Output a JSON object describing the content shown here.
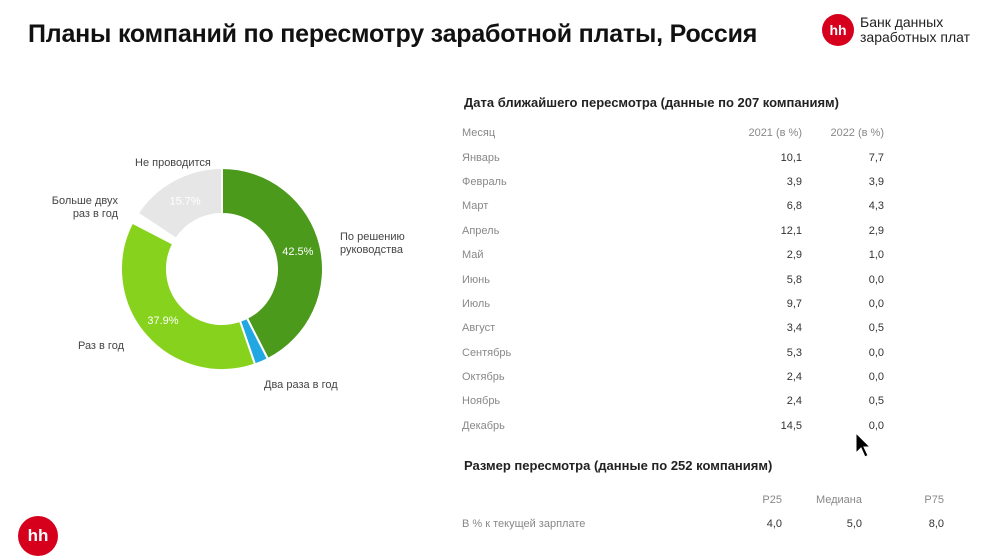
{
  "header": {
    "title": "Планы компаний по пересмотру заработной платы, Россия",
    "brand_logo": "hh",
    "brand_line1": "Банк данных",
    "brand_line2": "заработных плат"
  },
  "chart_data": {
    "type": "pie",
    "donut": true,
    "slices": [
      {
        "label": "По решению руководства",
        "value": 42.5,
        "value_label": "42.5%",
        "color": "#4b9a1c"
      },
      {
        "label": "Два раза в год",
        "value": 2.2,
        "value_label": "",
        "color": "#21a7e2"
      },
      {
        "label": "Раз в год",
        "value": 37.9,
        "value_label": "37.9%",
        "color": "#86d21c"
      },
      {
        "label": "Больше двух раз в год",
        "value": 1.7,
        "value_label": "",
        "color": "#ffffff"
      },
      {
        "label": "Не проводится",
        "value": 15.7,
        "value_label": "15.7%",
        "color": "#e6e6e6"
      }
    ],
    "outer_labels": {
      "none": "Не проводится",
      "more_than_two_line1": "Больше двух",
      "more_than_two_line2": "раз в год",
      "management_line1": "По решению",
      "management_line2": "руководства",
      "twice": "Два раза в год",
      "once": "Раз в год"
    }
  },
  "review_date": {
    "title": "Дата ближайшего пересмотра (данные по 207 компаниям)",
    "headers": [
      "Месяц",
      "2021 (в %)",
      "2022 (в %)"
    ],
    "rows": [
      [
        "Январь",
        "10,1",
        "7,7"
      ],
      [
        "Февраль",
        "3,9",
        "3,9"
      ],
      [
        "Март",
        "6,8",
        "4,3"
      ],
      [
        "Апрель",
        "12,1",
        "2,9"
      ],
      [
        "Май",
        "2,9",
        "1,0"
      ],
      [
        "Июнь",
        "5,8",
        "0,0"
      ],
      [
        "Июль",
        "9,7",
        "0,0"
      ],
      [
        "Август",
        "3,4",
        "0,5"
      ],
      [
        "Сентябрь",
        "5,3",
        "0,0"
      ],
      [
        "Октябрь",
        "2,4",
        "0,0"
      ],
      [
        "Ноябрь",
        "2,4",
        "0,5"
      ],
      [
        "Декабрь",
        "14,5",
        "0,0"
      ]
    ]
  },
  "review_size": {
    "title": "Размер пересмотра (данные по 252 компаниям)",
    "headers": [
      "",
      "P25",
      "Медиана",
      "P75"
    ],
    "row": [
      "В % к текущей зарплате",
      "4,0",
      "5,0",
      "8,0"
    ]
  },
  "footer": {
    "logo": "hh"
  }
}
